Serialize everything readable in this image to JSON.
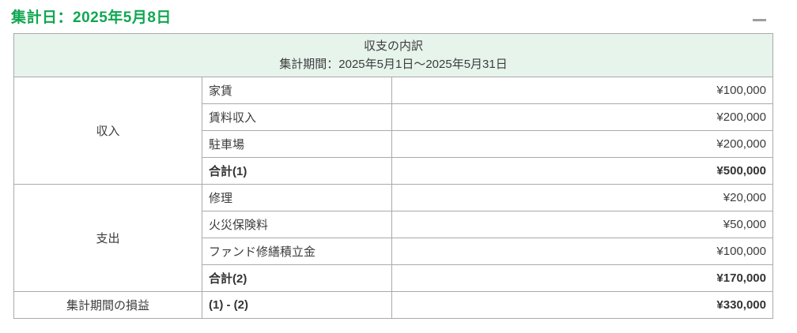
{
  "page": {
    "title": "集計日：2025年5月8日",
    "collapse_icon": "minus"
  },
  "colors": {
    "title_green": "#10a751",
    "header_bg": "#e6f4ec",
    "border": "#aaaaaa",
    "text": "#3c3c3c"
  },
  "table": {
    "header": {
      "title": "収支の内訳",
      "period": "集計期間：2025年5月1日～2025年5月31日"
    },
    "groups": [
      {
        "label": "収入",
        "rows": [
          {
            "item": "家賃",
            "amount": "¥100,000"
          },
          {
            "item": "賃料収入",
            "amount": "¥200,000"
          },
          {
            "item": "駐車場",
            "amount": "¥200,000"
          },
          {
            "item": "合計(1)",
            "amount": "¥500,000"
          }
        ]
      },
      {
        "label": "支出",
        "rows": [
          {
            "item": "修理",
            "amount": "¥20,000"
          },
          {
            "item": "火災保険料",
            "amount": "¥50,000"
          },
          {
            "item": "ファンド修繕積立金",
            "amount": "¥100,000"
          },
          {
            "item": "合計(2)",
            "amount": "¥170,000"
          }
        ]
      }
    ],
    "summary_row": {
      "label": "集計期間の損益",
      "formula": "(1) - (2)",
      "amount": "¥330,000"
    }
  }
}
